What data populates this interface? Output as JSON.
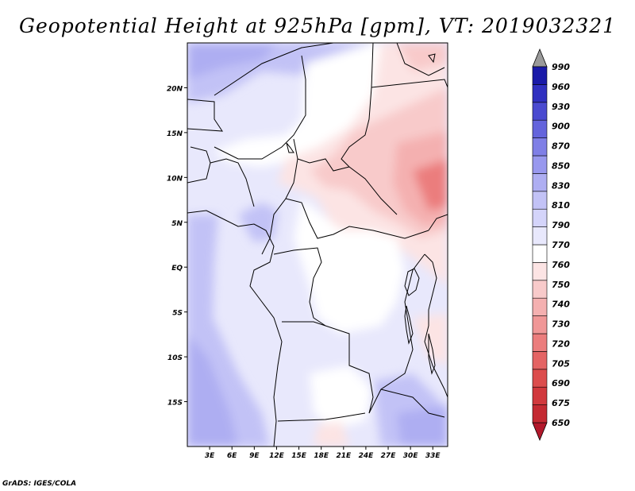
{
  "title": "Geopotential Height at 925hPa [gpm], VT: 2019032321",
  "footer": "GrADS: IGES/COLA",
  "map": {
    "lat_labels": [
      "20N",
      "15N",
      "10N",
      "5N",
      "EQ",
      "5S",
      "10S",
      "15S"
    ],
    "lon_labels": [
      "3E",
      "6E",
      "9E",
      "12E",
      "15E",
      "18E",
      "21E",
      "24E",
      "27E",
      "30E",
      "33E"
    ],
    "lon_range": [
      0,
      35
    ],
    "lat_range": [
      -20,
      25
    ]
  },
  "colorbar": {
    "labels": [
      "650",
      "675",
      "690",
      "705",
      "720",
      "730",
      "740",
      "750",
      "760",
      "770",
      "790",
      "810",
      "830",
      "850",
      "870",
      "900",
      "930",
      "960",
      "990"
    ],
    "colors": [
      "#b2182b",
      "#c42a32",
      "#d1393d",
      "#dc4d4d",
      "#e46464",
      "#eb7d7d",
      "#f09797",
      "#f4b0b0",
      "#f8caca",
      "#fce4e4",
      "#ffffff",
      "#e8e8fc",
      "#d4d4fa",
      "#c2c2f6",
      "#aeaef2",
      "#9898ee",
      "#7f7fe6",
      "#6464dc",
      "#4a4ad0",
      "#3030c0",
      "#1a1aa8",
      "#0a0a90"
    ]
  }
}
